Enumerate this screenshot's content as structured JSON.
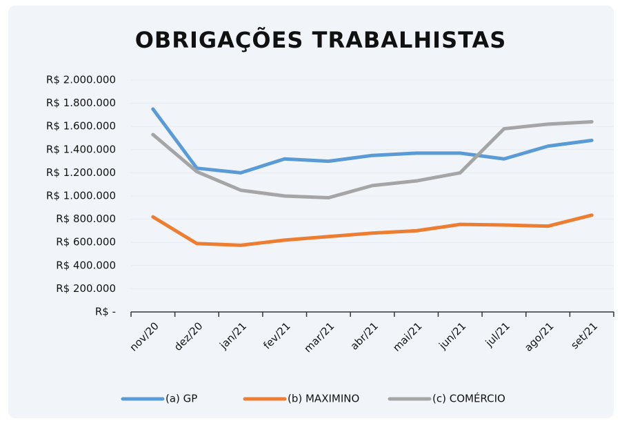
{
  "chart_data": {
    "type": "line",
    "title": "OBRIGAÇÕES TRABALHISTAS",
    "categories": [
      "nov/20",
      "dez/20",
      "jan/21",
      "fev/21",
      "mar/21",
      "abr/21",
      "mai/21",
      "jun/21",
      "jul/21",
      "ago/21",
      "set/21"
    ],
    "series": [
      {
        "name": "(a) GP",
        "color": "#5b9bd5",
        "values": [
          1750000,
          1240000,
          1200000,
          1320000,
          1300000,
          1350000,
          1370000,
          1370000,
          1320000,
          1430000,
          1480000
        ]
      },
      {
        "name": "(b) MAXIMINO",
        "color": "#ed7d31",
        "values": [
          820000,
          590000,
          575000,
          620000,
          650000,
          680000,
          700000,
          755000,
          750000,
          740000,
          835000
        ]
      },
      {
        "name": "(c) COMÉRCIO",
        "color": "#a5a5a5",
        "values": [
          1530000,
          1210000,
          1050000,
          1000000,
          985000,
          1090000,
          1130000,
          1200000,
          1580000,
          1620000,
          1640000
        ]
      }
    ],
    "ylim": [
      0,
      2000000
    ],
    "yticks": [
      {
        "value": 0,
        "label": "R$ -"
      },
      {
        "value": 200000,
        "label": "R$ 200.000"
      },
      {
        "value": 400000,
        "label": "R$ 400.000"
      },
      {
        "value": 600000,
        "label": "R$ 600.000"
      },
      {
        "value": 800000,
        "label": "R$ 800.000"
      },
      {
        "value": 1000000,
        "label": "R$ 1.000.000"
      },
      {
        "value": 1200000,
        "label": "R$ 1.200.000"
      },
      {
        "value": 1400000,
        "label": "R$ 1.400.000"
      },
      {
        "value": 1600000,
        "label": "R$ 1.600.000"
      },
      {
        "value": 1800000,
        "label": "R$ 1.800.000"
      },
      {
        "value": 2000000,
        "label": "R$ 2.000.000"
      }
    ],
    "grid": true,
    "legend": "bottom"
  }
}
